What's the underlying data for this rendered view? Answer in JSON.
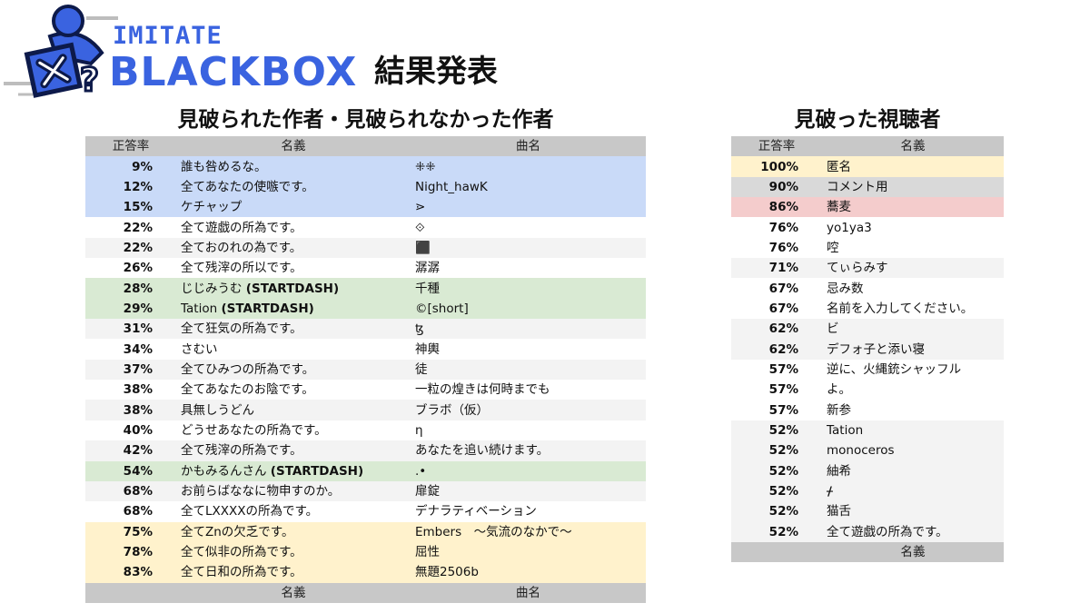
{
  "header": {
    "logo_top": "IMITATE",
    "logo_main": "BLACKBOX",
    "title": "結果発表"
  },
  "left": {
    "title": "見破られた作者・見破られなかった作者",
    "headers": [
      "正答率",
      "名義",
      "曲名"
    ],
    "footer": [
      "",
      "名義",
      "曲名"
    ],
    "rows": [
      {
        "pct": "9%",
        "name": "誰も咎めるな。",
        "song": "⁜⁜",
        "color": "blue"
      },
      {
        "pct": "12%",
        "name": "全てあなたの使嗾です。",
        "song": "Night_hawK",
        "color": "blue"
      },
      {
        "pct": "15%",
        "name": "ケチャップ",
        "song": "⋗",
        "color": "blue"
      },
      {
        "pct": "22%",
        "name": "全て遊戯の所為です。",
        "song": "⟐",
        "color": "plain"
      },
      {
        "pct": "22%",
        "name": "全ておのれの為です。",
        "song": "⬛",
        "color": "alt"
      },
      {
        "pct": "26%",
        "name": "全て残滓の所以です。",
        "song": "潺潺",
        "color": "plain"
      },
      {
        "pct": "28%",
        "name": "じじみうむ (STARTDASH)",
        "song": "千種",
        "color": "green"
      },
      {
        "pct": "29%",
        "name": "Tation (STARTDASH)",
        "song": "©[short]",
        "color": "green"
      },
      {
        "pct": "31%",
        "name": "全て狂気の所為です。",
        "song": "ꜩ",
        "color": "alt"
      },
      {
        "pct": "34%",
        "name": "さむい",
        "song": "神輿",
        "color": "plain"
      },
      {
        "pct": "37%",
        "name": "全てひみつの所為です。",
        "song": "徒",
        "color": "alt"
      },
      {
        "pct": "38%",
        "name": "全てあなたのお陰です。",
        "song": "一粒の煌きは何時までも",
        "color": "plain"
      },
      {
        "pct": "38%",
        "name": "具無しうどん",
        "song": "ブラボ（仮）",
        "color": "alt"
      },
      {
        "pct": "40%",
        "name": "どうせあなたの所為です。",
        "song": "η",
        "color": "plain"
      },
      {
        "pct": "42%",
        "name": "全て残滓の所為です。",
        "song": "あなたを追い続けます。",
        "color": "alt"
      },
      {
        "pct": "54%",
        "name": "かもみるんさん (STARTDASH)",
        "song": ".•",
        "color": "green"
      },
      {
        "pct": "68%",
        "name": "お前らばななに物申すのか。",
        "song": "扉錠",
        "color": "alt"
      },
      {
        "pct": "68%",
        "name": "全てLXXXXの所為です。",
        "song": "デナラティベーション",
        "color": "plain"
      },
      {
        "pct": "75%",
        "name": "全てZnの欠乏です。",
        "song": "Embers　～気流のなかで～",
        "color": "yellow"
      },
      {
        "pct": "78%",
        "name": "全て似非の所為です。",
        "song": "屈性",
        "color": "yellow"
      },
      {
        "pct": "83%",
        "name": "全て日和の所為です。",
        "song": "無題2506b",
        "color": "yellow"
      }
    ]
  },
  "right": {
    "title": "見破った視聴者",
    "headers": [
      "正答率",
      "名義"
    ],
    "footer": [
      "",
      "名義"
    ],
    "rows": [
      {
        "pct": "100%",
        "name": "匿名",
        "color": "yellow"
      },
      {
        "pct": "90%",
        "name": "コメント用",
        "color": "gray"
      },
      {
        "pct": "86%",
        "name": "蕎麦",
        "color": "pink"
      },
      {
        "pct": "76%",
        "name": "yo1ya3",
        "color": "plain"
      },
      {
        "pct": "76%",
        "name": "啌",
        "color": "plain"
      },
      {
        "pct": "71%",
        "name": "てぃらみす",
        "color": "alt"
      },
      {
        "pct": "67%",
        "name": "忌み数",
        "color": "plain"
      },
      {
        "pct": "67%",
        "name": "名前を入力してください。",
        "color": "plain"
      },
      {
        "pct": "62%",
        "name": "ビ",
        "color": "alt"
      },
      {
        "pct": "62%",
        "name": "デフォ子と添い寝",
        "color": "alt"
      },
      {
        "pct": "57%",
        "name": "逆に、火縄銃シャッフル",
        "color": "plain"
      },
      {
        "pct": "57%",
        "name": "よ。",
        "color": "plain"
      },
      {
        "pct": "57%",
        "name": "新参",
        "color": "plain"
      },
      {
        "pct": "52%",
        "name": "Tation",
        "color": "alt"
      },
      {
        "pct": "52%",
        "name": "monoceros",
        "color": "alt"
      },
      {
        "pct": "52%",
        "name": "紬希",
        "color": "alt"
      },
      {
        "pct": "52%",
        "name": "ᚋ",
        "color": "alt"
      },
      {
        "pct": "52%",
        "name": "猫舌",
        "color": "alt"
      },
      {
        "pct": "52%",
        "name": "全て遊戯の所為です。",
        "color": "alt"
      }
    ]
  },
  "colors": {
    "blue": "#c9daf8",
    "green": "#d9ead3",
    "yellow": "#fff2cc",
    "pink": "#f4cccc",
    "gray": "#d9d9d9",
    "header": "#c8c8c8",
    "logo": "#3a63e0"
  }
}
